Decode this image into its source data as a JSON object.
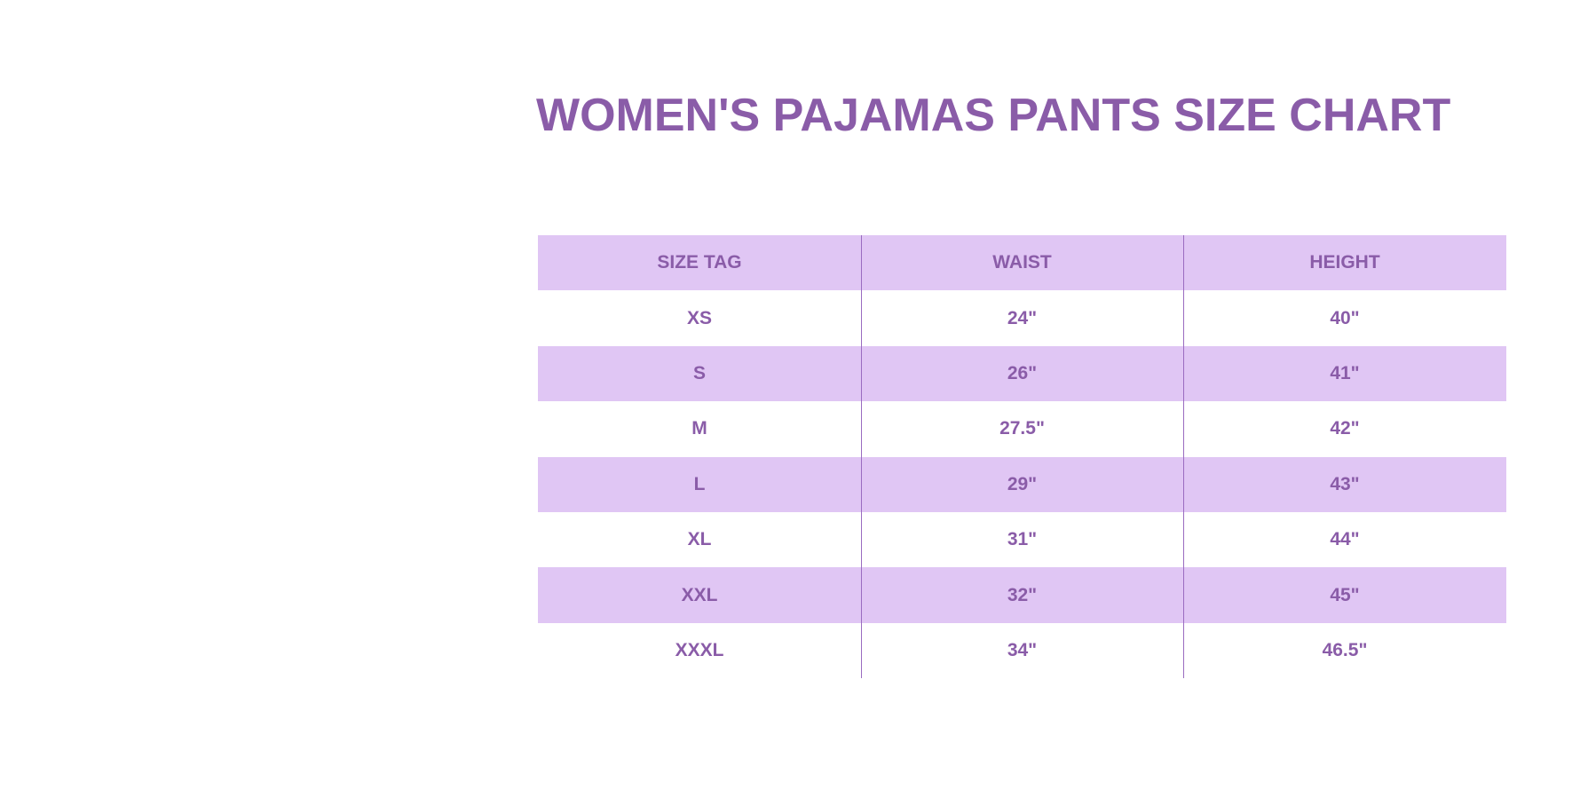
{
  "title": "WOMEN'S PAJAMAS PANTS SIZE CHART",
  "colors": {
    "accent": "#8a5ca8",
    "band": "#e0c6f4",
    "background": "#ffffff"
  },
  "table": {
    "headers": [
      "SIZE TAG",
      "WAIST",
      "HEIGHT"
    ],
    "rows": [
      [
        "XS",
        "24\"",
        "40\""
      ],
      [
        "S",
        "26\"",
        "41\""
      ],
      [
        "M",
        "27.5\"",
        "42\""
      ],
      [
        "L",
        "29\"",
        "43\""
      ],
      [
        "XL",
        "31\"",
        "44\""
      ],
      [
        "XXL",
        "32\"",
        "45\""
      ],
      [
        "XXXL",
        "34\"",
        "46.5\""
      ]
    ]
  }
}
